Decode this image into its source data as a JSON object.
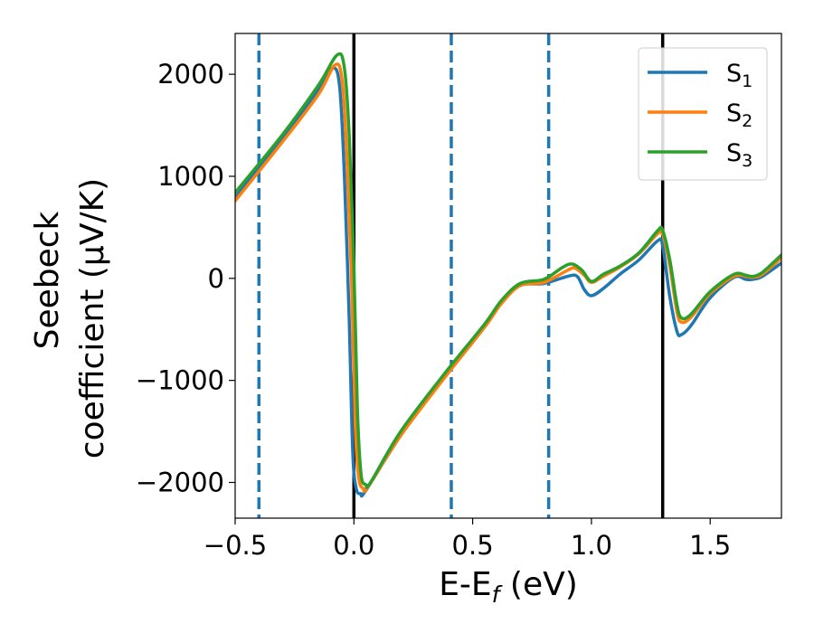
{
  "chart_data": {
    "type": "line",
    "xlabel": {
      "main": "E-E",
      "sub": "f",
      "rest": " (eV)"
    },
    "ylabel": [
      "Seebeck",
      "coefficient  (μV/K)"
    ],
    "xlim": [
      -0.5,
      1.8
    ],
    "ylim": [
      -2350,
      2400
    ],
    "xticks": [
      {
        "value": -0.5,
        "label": "−0.5"
      },
      {
        "value": 0.0,
        "label": "0.0"
      },
      {
        "value": 0.5,
        "label": "0.5"
      },
      {
        "value": 1.0,
        "label": "1.0"
      },
      {
        "value": 1.5,
        "label": "1.5"
      }
    ],
    "yticks": [
      {
        "value": -2000,
        "label": "−2000"
      },
      {
        "value": -1000,
        "label": "−1000"
      },
      {
        "value": 0,
        "label": "0"
      },
      {
        "value": 1000,
        "label": "1000"
      },
      {
        "value": 2000,
        "label": "2000"
      }
    ],
    "grid": false,
    "legend_position": "top-right",
    "vlines": [
      {
        "x": -0.4,
        "style": "dashed",
        "color": "#1f77b4"
      },
      {
        "x": 0.0,
        "style": "solid",
        "color": "#000000"
      },
      {
        "x": 0.41,
        "style": "dashed",
        "color": "#1f77b4"
      },
      {
        "x": 0.82,
        "style": "dashed",
        "color": "#1f77b4"
      },
      {
        "x": 1.3,
        "style": "solid",
        "color": "#000000"
      }
    ],
    "series": [
      {
        "name": "S",
        "sub": "1",
        "color": "#1f77b4",
        "points": [
          [
            -0.5,
            790
          ],
          [
            -0.3,
            1380
          ],
          [
            -0.15,
            1840
          ],
          [
            -0.09,
            2060
          ],
          [
            -0.06,
            1880
          ],
          [
            -0.04,
            1000
          ],
          [
            -0.02,
            -400
          ],
          [
            -0.005,
            -1700
          ],
          [
            0.01,
            -2060
          ],
          [
            0.03,
            -2110
          ],
          [
            0.05,
            -2080
          ],
          [
            0.2,
            -1530
          ],
          [
            0.4,
            -910
          ],
          [
            0.55,
            -470
          ],
          [
            0.62,
            -240
          ],
          [
            0.7,
            -70
          ],
          [
            0.8,
            -50
          ],
          [
            0.9,
            20
          ],
          [
            0.94,
            20
          ],
          [
            0.97,
            -110
          ],
          [
            1.0,
            -170
          ],
          [
            1.05,
            -100
          ],
          [
            1.12,
            40
          ],
          [
            1.2,
            180
          ],
          [
            1.28,
            370
          ],
          [
            1.3,
            320
          ],
          [
            1.33,
            -180
          ],
          [
            1.36,
            -520
          ],
          [
            1.38,
            -550
          ],
          [
            1.42,
            -460
          ],
          [
            1.5,
            -190
          ],
          [
            1.6,
            10
          ],
          [
            1.65,
            -10
          ],
          [
            1.68,
            -10
          ],
          [
            1.72,
            20
          ],
          [
            1.8,
            150
          ]
        ]
      },
      {
        "name": "S",
        "sub": "2",
        "color": "#ff7f0e",
        "points": [
          [
            -0.5,
            760
          ],
          [
            -0.3,
            1340
          ],
          [
            -0.15,
            1800
          ],
          [
            -0.08,
            2090
          ],
          [
            -0.05,
            1950
          ],
          [
            -0.03,
            1200
          ],
          [
            -0.01,
            0
          ],
          [
            0.005,
            -1400
          ],
          [
            0.02,
            -1950
          ],
          [
            0.04,
            -2060
          ],
          [
            0.06,
            -2040
          ],
          [
            0.2,
            -1530
          ],
          [
            0.4,
            -920
          ],
          [
            0.55,
            -480
          ],
          [
            0.62,
            -250
          ],
          [
            0.7,
            -70
          ],
          [
            0.8,
            -40
          ],
          [
            0.9,
            80
          ],
          [
            0.93,
            100
          ],
          [
            0.97,
            30
          ],
          [
            1.0,
            -40
          ],
          [
            1.05,
            20
          ],
          [
            1.12,
            110
          ],
          [
            1.2,
            240
          ],
          [
            1.28,
            440
          ],
          [
            1.3,
            430
          ],
          [
            1.33,
            120
          ],
          [
            1.36,
            -330
          ],
          [
            1.38,
            -430
          ],
          [
            1.42,
            -380
          ],
          [
            1.5,
            -150
          ],
          [
            1.6,
            20
          ],
          [
            1.65,
            20
          ],
          [
            1.68,
            10
          ],
          [
            1.72,
            40
          ],
          [
            1.8,
            200
          ]
        ]
      },
      {
        "name": "S",
        "sub": "3",
        "color": "#2ca02c",
        "points": [
          [
            -0.5,
            840
          ],
          [
            -0.3,
            1410
          ],
          [
            -0.15,
            1890
          ],
          [
            -0.07,
            2190
          ],
          [
            -0.04,
            2060
          ],
          [
            -0.02,
            1400
          ],
          [
            0.0,
            100
          ],
          [
            0.015,
            -1300
          ],
          [
            0.03,
            -1920
          ],
          [
            0.05,
            -2020
          ],
          [
            0.07,
            -2000
          ],
          [
            0.2,
            -1490
          ],
          [
            0.4,
            -880
          ],
          [
            0.55,
            -450
          ],
          [
            0.62,
            -220
          ],
          [
            0.7,
            -50
          ],
          [
            0.8,
            -10
          ],
          [
            0.88,
            110
          ],
          [
            0.92,
            140
          ],
          [
            0.96,
            80
          ],
          [
            1.0,
            -30
          ],
          [
            1.05,
            40
          ],
          [
            1.12,
            120
          ],
          [
            1.2,
            250
          ],
          [
            1.28,
            470
          ],
          [
            1.3,
            470
          ],
          [
            1.33,
            180
          ],
          [
            1.36,
            -260
          ],
          [
            1.38,
            -390
          ],
          [
            1.42,
            -350
          ],
          [
            1.5,
            -130
          ],
          [
            1.6,
            40
          ],
          [
            1.65,
            30
          ],
          [
            1.68,
            20
          ],
          [
            1.72,
            60
          ],
          [
            1.8,
            230
          ]
        ]
      }
    ]
  }
}
